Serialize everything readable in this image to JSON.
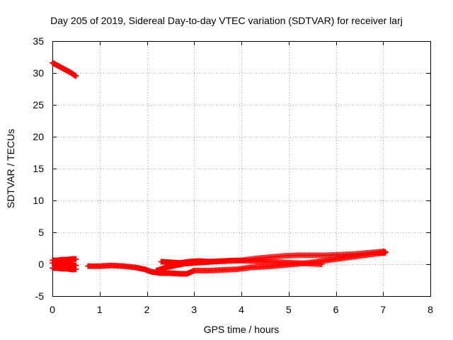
{
  "chart_data": {
    "type": "scatter",
    "title": "Day 205 of 2019, Sidereal Day-to-day VTEC variation (SDTVAR) for receiver larj",
    "xlabel": "GPS time / hours",
    "ylabel": "SDTVAR / TECUs",
    "xlim": [
      0,
      8
    ],
    "ylim": [
      -5,
      35
    ],
    "xticks": [
      "0",
      "1",
      "2",
      "3",
      "4",
      "5",
      "6",
      "7",
      "8"
    ],
    "yticks": [
      "-5",
      "0",
      "5",
      "10",
      "15",
      "20",
      "25",
      "30",
      "35"
    ],
    "grid": true,
    "marker": "plus",
    "color": "#ff0000",
    "series": [
      {
        "x": [
          0.0,
          0.1,
          0.2,
          0.3,
          0.4,
          0.5
        ],
        "y": [
          31.6,
          31.2,
          30.8,
          30.4,
          30.0,
          29.5
        ]
      },
      {
        "x": [
          0.0,
          0.1,
          0.2,
          0.3,
          0.4,
          0.5
        ],
        "y": [
          0.6,
          0.6,
          0.7,
          0.7,
          0.8,
          0.8
        ]
      },
      {
        "x": [
          0.0,
          0.1,
          0.2,
          0.3,
          0.4,
          0.5
        ],
        "y": [
          0.2,
          0.1,
          0.0,
          -0.1,
          -0.1,
          -0.2
        ]
      },
      {
        "x": [
          0.0,
          0.1,
          0.2,
          0.3,
          0.4,
          0.5
        ],
        "y": [
          -0.6,
          -0.6,
          -0.7,
          -0.7,
          -0.8,
          -0.8
        ]
      },
      {
        "x": [
          0.75,
          1.0,
          1.25,
          1.5,
          1.75,
          1.95,
          2.1,
          2.3,
          2.5,
          2.7,
          2.85,
          3.0,
          3.3,
          3.6,
          3.9,
          4.2,
          4.5,
          4.8,
          5.1,
          5.4,
          5.7,
          6.0,
          6.3,
          6.6,
          6.9,
          7.05
        ],
        "y": [
          -0.3,
          -0.3,
          -0.2,
          -0.3,
          -0.5,
          -0.8,
          -1.2,
          -1.4,
          -1.4,
          -1.5,
          -1.5,
          -1.0,
          -1.0,
          -0.9,
          -0.8,
          -0.5,
          -0.4,
          -0.2,
          0.0,
          0.2,
          0.5,
          0.8,
          1.1,
          1.4,
          1.7,
          1.8
        ]
      },
      {
        "x": [
          2.3,
          2.5,
          2.7,
          2.9,
          3.1,
          3.3,
          3.6,
          3.9,
          4.2,
          4.5,
          4.8,
          5.1,
          5.4,
          5.7
        ],
        "y": [
          0.4,
          0.3,
          0.2,
          0.4,
          0.5,
          0.4,
          0.5,
          0.6,
          0.5,
          0.4,
          0.3,
          0.2,
          0.1,
          0.0
        ]
      },
      {
        "x": [
          2.2,
          2.4,
          2.6,
          2.8,
          3.0,
          3.2,
          3.4,
          3.7,
          4.0,
          4.3,
          4.6,
          4.9,
          5.2,
          5.5,
          5.8,
          6.1,
          6.4,
          6.7,
          7.0,
          7.05
        ],
        "y": [
          -1.0,
          -0.5,
          -0.2,
          0.1,
          0.2,
          0.3,
          0.4,
          0.5,
          0.6,
          0.9,
          1.1,
          1.3,
          1.4,
          1.4,
          1.4,
          1.5,
          1.6,
          1.8,
          2.0,
          1.9
        ]
      }
    ]
  }
}
